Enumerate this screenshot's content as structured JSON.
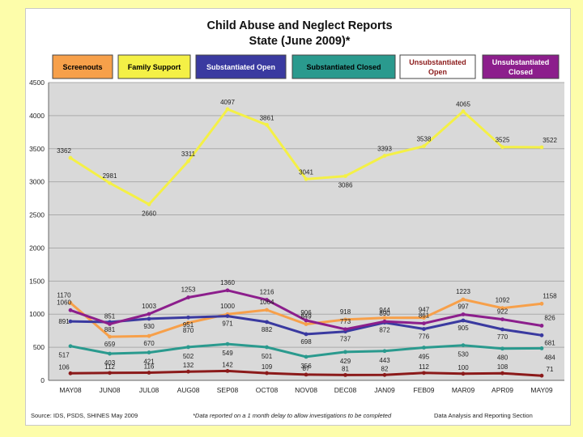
{
  "chart_data": {
    "type": "line",
    "title": "Child Abuse and Neglect Reports",
    "subtitle": "State (June 2009)*",
    "categories": [
      "MAY08",
      "JUN08",
      "JUL08",
      "AUG08",
      "SEP08",
      "OCT08",
      "NOV08",
      "DEC08",
      "JAN09",
      "FEB09",
      "MAR09",
      "APR09",
      "MAY09"
    ],
    "ylim": [
      0,
      4500
    ],
    "yticks": [
      0,
      500,
      1000,
      1500,
      2000,
      2500,
      3000,
      3500,
      4000,
      4500
    ],
    "grid": true,
    "legend_position": "top",
    "series": [
      {
        "name": "Screenouts",
        "color": "#f7a04a",
        "text_color": "#000000",
        "label_color": "#f7a04a",
        "values": [
          1170,
          659,
          670,
          870,
          1000,
          1064,
          849,
          918,
          944,
          947,
          1223,
          1092,
          1158
        ]
      },
      {
        "name": "Family Support",
        "color": "#f4f046",
        "text_color": "#000000",
        "label_color": "#f4f046",
        "values": [
          3362,
          2981,
          2660,
          3311,
          4097,
          3861,
          3041,
          3086,
          3393,
          3538,
          4065,
          3525,
          3522
        ]
      },
      {
        "name": "Substantiated Open",
        "color": "#3a3aa0",
        "text_color": "#ffffff",
        "label_color": "#3a3aa0",
        "values": [
          891,
          881,
          930,
          951,
          971,
          882,
          698,
          737,
          872,
          776,
          905,
          770,
          681
        ]
      },
      {
        "name": "Substantiated Closed",
        "color": "#2a9a8e",
        "text_color": "#000000",
        "label_color": "#2a9a8e",
        "values": [
          517,
          403,
          421,
          502,
          549,
          501,
          356,
          429,
          443,
          495,
          530,
          480,
          484
        ]
      },
      {
        "name": "Unsubstantiated Open",
        "color": "#8b1a1a",
        "text_color": "#ffffff",
        "label_color": "#8b1a1a",
        "values": [
          106,
          112,
          116,
          132,
          142,
          109,
          87,
          81,
          82,
          112,
          100,
          108,
          71
        ]
      },
      {
        "name": "Unsubstantiated Closed",
        "color": "#8c1e8c",
        "text_color": "#ffffff",
        "label_color": "#8c1e8c",
        "values": [
          1060,
          851,
          1003,
          1253,
          1360,
          1216,
          906,
          773,
          890,
          861,
          997,
          922,
          826
        ]
      }
    ],
    "legend_labels": [
      [
        "Screenouts"
      ],
      [
        "Family Support"
      ],
      [
        "Substantiated Open"
      ],
      [
        "Substantiated Closed"
      ],
      [
        "Unsubstantiated",
        "Open"
      ],
      [
        "Unsubstantiated",
        "Closed"
      ]
    ],
    "legend_colors": {
      "Screenouts": {
        "bg": "#f7a04a",
        "fg": "#000000"
      },
      "Family Support": {
        "bg": "#f4f046",
        "fg": "#000000"
      },
      "Substantiated Open": {
        "bg": "#3a3aa0",
        "fg": "#ffffff"
      },
      "Substantiated Closed": {
        "bg": "#2a9a8e",
        "fg": "#000000"
      },
      "Unsubstantiated Open": {
        "bg": "#ffffff",
        "fg": "#8b1a1a"
      },
      "Unsubstantiated Closed": {
        "bg": "#8c1e8c",
        "fg": "#ffffff"
      }
    }
  },
  "footer": {
    "source": "Source: IDS, PSDS, SHINES May 2009",
    "note": "*Data reported on a 1 month delay to allow investigations to be completed",
    "section": "Data Analysis and Reporting Section"
  }
}
